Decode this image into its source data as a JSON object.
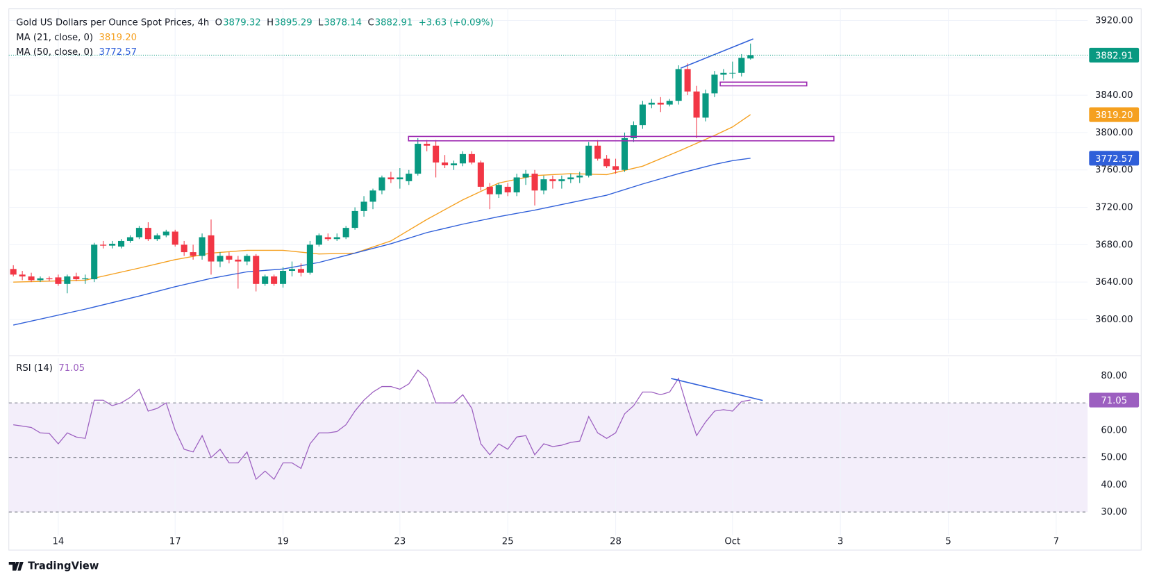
{
  "chart_data": [
    {
      "type": "candlestick",
      "title": "Gold US Dollars per Ounce Spot Prices, 4h",
      "ohlc_prefixes": [
        "O",
        "H",
        "L",
        "C"
      ],
      "change_label": "+3.63 (+0.09%)",
      "up_color": "#089981",
      "down_color": "#f23645",
      "grid": true,
      "xlim": [
        -0.5,
        119.5
      ],
      "xticks": [
        {
          "value": 5,
          "label": "14"
        },
        {
          "value": 18,
          "label": "17"
        },
        {
          "value": 30,
          "label": "19"
        },
        {
          "value": 43,
          "label": "23"
        },
        {
          "value": 55,
          "label": "25"
        },
        {
          "value": 67,
          "label": "28"
        },
        {
          "value": 80,
          "label": "Oct"
        },
        {
          "value": 92,
          "label": "3"
        },
        {
          "value": 104,
          "label": "5"
        },
        {
          "value": 116,
          "label": "7"
        }
      ],
      "ylim": [
        3563.5,
        3932.5
      ],
      "yticks": [
        {
          "value": 3600,
          "label": "3600.00"
        },
        {
          "value": 3640,
          "label": "3640.00"
        },
        {
          "value": 3680,
          "label": "3680.00"
        },
        {
          "value": 3720,
          "label": "3720.00"
        },
        {
          "value": 3760,
          "label": "3760.00"
        },
        {
          "value": 3800,
          "label": "3800.00"
        },
        {
          "value": 3840,
          "label": "3840.00"
        },
        {
          "value": 3880,
          "label": "3880.00"
        },
        {
          "value": 3920,
          "label": "3920.00"
        }
      ],
      "open": [
        3654,
        3648,
        3646,
        3642,
        3644,
        3645,
        3638,
        3646,
        3643,
        3643,
        3680,
        3679,
        3678,
        3684,
        3688,
        3698,
        3686,
        3690,
        3694,
        3680,
        3672,
        3668,
        3690,
        3662,
        3668,
        3664,
        3662,
        3668,
        3638,
        3646,
        3638,
        3652,
        3654,
        3650,
        3680,
        3688,
        3686,
        3688,
        3698,
        3716,
        3726,
        3738,
        3752,
        3750,
        3748,
        3756,
        3788,
        3786,
        3768,
        3765,
        3767,
        3777,
        3768,
        3742,
        3734,
        3742,
        3736,
        3752,
        3756,
        3738,
        3750,
        3748,
        3750,
        3752,
        3754,
        3786,
        3772,
        3764,
        3760,
        3794,
        3808,
        3830,
        3832,
        3830,
        3834,
        3868,
        3844,
        3816,
        3842,
        3862,
        3864,
        3864,
        3879.32
      ],
      "high": [
        3658,
        3652,
        3650,
        3646,
        3646,
        3648,
        3648,
        3650,
        3648,
        3682,
        3684,
        3684,
        3686,
        3690,
        3700,
        3704,
        3692,
        3696,
        3696,
        3684,
        3680,
        3692,
        3707,
        3672,
        3672,
        3668,
        3670,
        3670,
        3648,
        3648,
        3656,
        3662,
        3660,
        3684,
        3692,
        3692,
        3692,
        3700,
        3720,
        3732,
        3740,
        3754,
        3758,
        3762,
        3760,
        3794,
        3792,
        3792,
        3776,
        3770,
        3780,
        3780,
        3770,
        3746,
        3746,
        3746,
        3756,
        3760,
        3760,
        3754,
        3754,
        3754,
        3756,
        3758,
        3790,
        3792,
        3776,
        3772,
        3800,
        3812,
        3834,
        3836,
        3838,
        3836,
        3872,
        3874,
        3850,
        3846,
        3866,
        3868,
        3876,
        3884,
        3895.29
      ],
      "low": [
        3646,
        3642,
        3640,
        3640,
        3641,
        3636,
        3628,
        3641,
        3638,
        3640,
        3676,
        3676,
        3676,
        3682,
        3686,
        3684,
        3684,
        3688,
        3678,
        3668,
        3664,
        3664,
        3648,
        3656,
        3660,
        3633,
        3658,
        3630,
        3636,
        3636,
        3634,
        3646,
        3646,
        3648,
        3678,
        3684,
        3684,
        3686,
        3696,
        3710,
        3718,
        3734,
        3746,
        3740,
        3744,
        3754,
        3780,
        3752,
        3762,
        3760,
        3764,
        3766,
        3738,
        3718,
        3730,
        3732,
        3732,
        3744,
        3722,
        3734,
        3740,
        3740,
        3746,
        3746,
        3752,
        3770,
        3762,
        3756,
        3758,
        3790,
        3804,
        3826,
        3822,
        3828,
        3830,
        3840,
        3794,
        3812,
        3838,
        3856,
        3858,
        3860,
        3878.14
      ],
      "close": [
        3648,
        3646,
        3642,
        3644,
        3643,
        3638,
        3646,
        3643,
        3644,
        3680,
        3679,
        3681,
        3684,
        3688,
        3698,
        3686,
        3690,
        3694,
        3680,
        3672,
        3668,
        3688,
        3662,
        3668,
        3664,
        3662,
        3668,
        3638,
        3646,
        3638,
        3652,
        3654,
        3650,
        3680,
        3690,
        3686,
        3688,
        3698,
        3716,
        3726,
        3738,
        3752,
        3750,
        3752,
        3756,
        3788,
        3786,
        3768,
        3765,
        3767,
        3777,
        3768,
        3742,
        3734,
        3744,
        3736,
        3752,
        3756,
        3738,
        3750,
        3748,
        3750,
        3752,
        3754,
        3786,
        3772,
        3764,
        3760,
        3794,
        3808,
        3830,
        3832,
        3830,
        3834,
        3868,
        3844,
        3816,
        3842,
        3862,
        3864,
        3864,
        3880,
        3882.91
      ],
      "series": [
        {
          "name": "MA (21, close, 0)",
          "color": "#f5a01f",
          "last_value_label": "3819.20",
          "x": [
            0,
            8,
            14,
            18,
            22,
            26,
            30,
            34,
            38,
            42,
            46,
            50,
            54,
            58,
            62,
            66,
            70,
            74,
            78,
            80,
            82
          ],
          "values": [
            3640,
            3642,
            3655,
            3664,
            3671,
            3674,
            3674,
            3670,
            3671,
            3684,
            3707,
            3728,
            3746,
            3754,
            3756,
            3755,
            3764,
            3780,
            3797,
            3806,
            3819.2
          ]
        },
        {
          "name": "MA (50, close, 0)",
          "color": "#2f5fd9",
          "last_value_label": "3772.57",
          "x": [
            0,
            8,
            14,
            18,
            22,
            26,
            30,
            34,
            38,
            42,
            46,
            50,
            54,
            58,
            62,
            66,
            70,
            74,
            78,
            80,
            82
          ],
          "values": [
            3594,
            3611,
            3625,
            3635,
            3644,
            3651,
            3654,
            3661,
            3671,
            3681,
            3693,
            3702,
            3710,
            3717,
            3725,
            3733,
            3745,
            3756,
            3766,
            3770,
            3772.57
          ]
        }
      ]
    },
    {
      "type": "line",
      "xlim": [
        -0.5,
        119.5
      ],
      "ylim": [
        21.4,
        86.5
      ],
      "yticks": [
        {
          "value": 30,
          "label": "30.00"
        },
        {
          "value": 40,
          "label": "40.00"
        },
        {
          "value": 50,
          "label": "50.00"
        },
        {
          "value": 60,
          "label": "60.00"
        },
        {
          "value": 80,
          "label": "80.00"
        }
      ],
      "levels": [
        30,
        50,
        70
      ],
      "band_color": "#f3eefa",
      "series": [
        {
          "name": "RSI (14)",
          "color": "#9c5fc0",
          "values": [
            62,
            61.5,
            61,
            59,
            58.8,
            55,
            59,
            57.5,
            57,
            71,
            71,
            69,
            70,
            72,
            75,
            67,
            68,
            70,
            60,
            53,
            52,
            58,
            50,
            53,
            48,
            48,
            52,
            42,
            45,
            42,
            48,
            48,
            46,
            55,
            59,
            59,
            59.5,
            62,
            67,
            71,
            74,
            76,
            76,
            75,
            77,
            82,
            79,
            70,
            70,
            70,
            73,
            68,
            55,
            51,
            55,
            53,
            57.5,
            58,
            51,
            55,
            54,
            54.5,
            55.5,
            56,
            65,
            59,
            57,
            59,
            66,
            69,
            74,
            74,
            73,
            74,
            79,
            68,
            58,
            63,
            67,
            67.5,
            67,
            70.5,
            71.05
          ]
        }
      ]
    }
  ],
  "footer": {
    "brand": "TradingView"
  }
}
